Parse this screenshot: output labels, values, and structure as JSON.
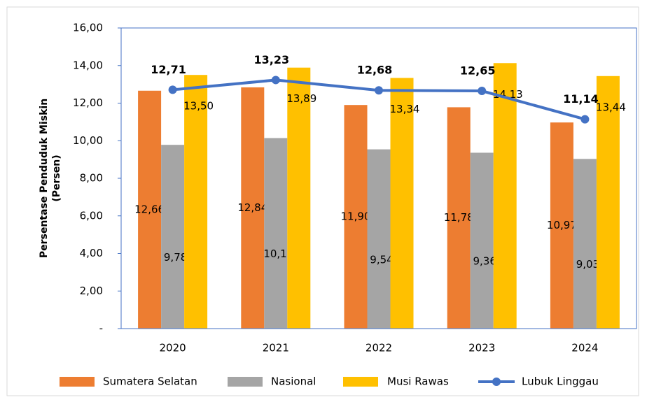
{
  "chart_data": {
    "type": "bar",
    "ylabel": [
      "Persentase Penduduk Miskin",
      "(Persen)"
    ],
    "categories": [
      "2020",
      "2021",
      "2022",
      "2023",
      "2024"
    ],
    "series": [
      {
        "name": "Sumatera Selatan",
        "color": "#ed7d31",
        "values": [
          12.66,
          12.84,
          11.9,
          11.78,
          10.97
        ],
        "value_labels": [
          "12,66",
          "12,84",
          "11,90",
          "11,78",
          "10,97"
        ]
      },
      {
        "name": "Nasional",
        "color": "#a5a5a5",
        "values": [
          9.78,
          10.14,
          9.54,
          9.36,
          9.03
        ],
        "value_labels": [
          "9,78",
          "10,14",
          "9,54",
          "9,36",
          "9,03"
        ]
      },
      {
        "name": "Musi Rawas",
        "color": "#ffc000",
        "values": [
          13.5,
          13.89,
          13.34,
          14.13,
          13.44
        ],
        "value_labels": [
          "13,50",
          "13,89",
          "13,34",
          "14,13",
          "13,44"
        ]
      },
      {
        "name": "Lubuk Linggau",
        "color": "#4472c4",
        "type": "line",
        "values": [
          12.71,
          13.23,
          12.68,
          12.65,
          11.14
        ],
        "value_labels": [
          "12,71",
          "13,23",
          "12,68",
          "12,65",
          "11,14"
        ]
      }
    ],
    "ylim": [
      0,
      16
    ],
    "yticks": [
      {
        "value": 0,
        "label": "-"
      },
      {
        "value": 2,
        "label": "2,00"
      },
      {
        "value": 4,
        "label": "4,00"
      },
      {
        "value": 6,
        "label": "6,00"
      },
      {
        "value": 8,
        "label": "8,00"
      },
      {
        "value": 10,
        "label": "10,00"
      },
      {
        "value": 12,
        "label": "12,00"
      },
      {
        "value": 14,
        "label": "14,00"
      },
      {
        "value": 16,
        "label": "16,00"
      }
    ],
    "legend": "bottom"
  }
}
